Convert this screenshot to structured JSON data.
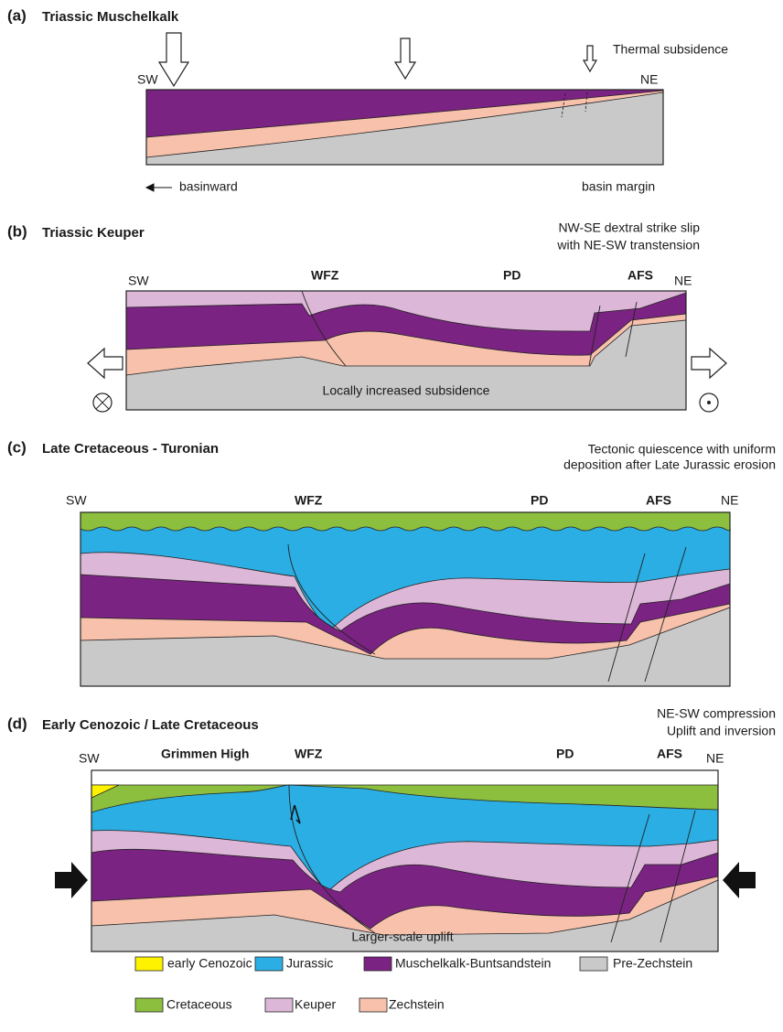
{
  "panels": [
    {
      "label": "(a)",
      "title": "Triassic Muschelkalk",
      "notes": [
        "Thermal subsidence"
      ],
      "labels": [
        "SW",
        "NE",
        "basinward",
        "basin margin"
      ]
    },
    {
      "label": "(b)",
      "title": "Triassic Keuper",
      "notes": [
        "NW-SE dextral strike slip",
        "with NE-SW transtension"
      ],
      "labels": [
        "SW",
        "WFZ",
        "PD",
        "AFS",
        "NE",
        "Locally increased subsidence"
      ]
    },
    {
      "label": "(c)",
      "title": "Late Cretaceous - Turonian",
      "notes": [
        "Tectonic quiescence with uniform",
        "deposition after Late Jurassic erosion"
      ],
      "labels": [
        "SW",
        "WFZ",
        "PD",
        "AFS",
        "NE"
      ]
    },
    {
      "label": "(d)",
      "title": "Early Cenozoic / Late Cretaceous",
      "notes": [
        "NE-SW compression",
        "Uplift and inversion"
      ],
      "labels": [
        "SW",
        "Grimmen High",
        "WFZ",
        "PD",
        "AFS",
        "NE",
        "Larger-scale uplift"
      ]
    }
  ],
  "legend": [
    "early Cenozoic",
    "Jurassic",
    "Muschelkalk-Buntsandstein",
    "Pre-Zechstein",
    "Cretaceous",
    "Keuper",
    "Zechstein"
  ]
}
